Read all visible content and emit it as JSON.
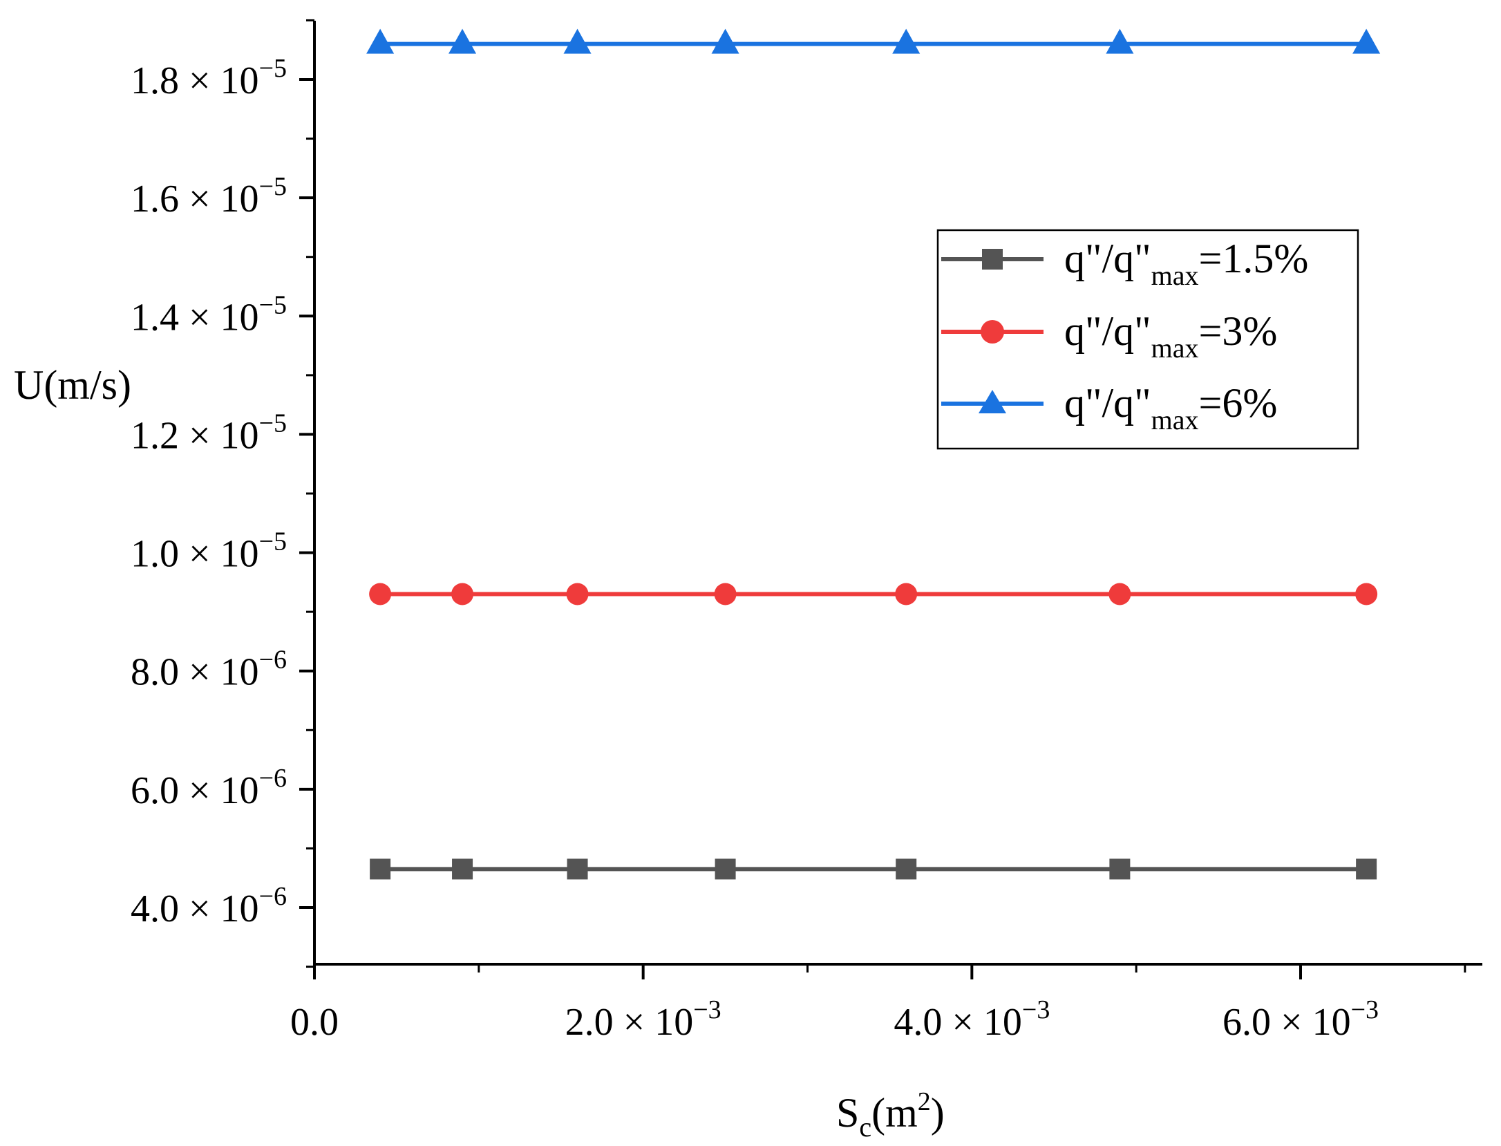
{
  "chart_data": {
    "type": "line",
    "xlabel": "S",
    "xlabel_sub": "c",
    "xlabel_unit_open": "(m",
    "xlabel_unit_sup": "2",
    "xlabel_unit_close": ")",
    "ylabel": "U(m/s)",
    "xlim": [
      0,
      0.007
    ],
    "ylim": [
      3e-06,
      1.9e-05
    ],
    "x_ticks": [
      {
        "value": 0,
        "mantissa": "0.0",
        "exponent": ""
      },
      {
        "value": 0.002,
        "mantissa": "2.0",
        "exponent": "−3"
      },
      {
        "value": 0.004,
        "mantissa": "4.0",
        "exponent": "−3"
      },
      {
        "value": 0.006,
        "mantissa": "6.0",
        "exponent": "−3"
      }
    ],
    "y_ticks": [
      {
        "value": 4e-06,
        "mantissa": "4.0",
        "exponent": "−6"
      },
      {
        "value": 6e-06,
        "mantissa": "6.0",
        "exponent": "−6"
      },
      {
        "value": 8e-06,
        "mantissa": "8.0",
        "exponent": "−6"
      },
      {
        "value": 1e-05,
        "mantissa": "1.0",
        "exponent": "−5"
      },
      {
        "value": 1.2e-05,
        "mantissa": "1.2",
        "exponent": "−5"
      },
      {
        "value": 1.4e-05,
        "mantissa": "1.4",
        "exponent": "−5"
      },
      {
        "value": 1.6e-05,
        "mantissa": "1.6",
        "exponent": "−5"
      },
      {
        "value": 1.8e-05,
        "mantissa": "1.8",
        "exponent": "−5"
      }
    ],
    "times_symbol": "×",
    "base": "10",
    "x": [
      0.0004,
      0.0009,
      0.0016,
      0.0025,
      0.0036,
      0.0049,
      0.0064
    ],
    "series": [
      {
        "key": "s15",
        "name_prefix": "q\"/q\"",
        "name_sub": "max",
        "name_suffix": "=1.5%",
        "color": "#545454",
        "marker": "square",
        "values": [
          4.65e-06,
          4.65e-06,
          4.65e-06,
          4.65e-06,
          4.65e-06,
          4.65e-06,
          4.65e-06
        ]
      },
      {
        "key": "s3",
        "name_prefix": "q\"/q\"",
        "name_sub": "max",
        "name_suffix": "=3%",
        "color": "#ef3b3b",
        "marker": "circle",
        "values": [
          9.3e-06,
          9.3e-06,
          9.3e-06,
          9.3e-06,
          9.3e-06,
          9.3e-06,
          9.3e-06
        ]
      },
      {
        "key": "s6",
        "name_prefix": "q\"/q\"",
        "name_sub": "max",
        "name_suffix": "=6%",
        "color": "#1a73e0",
        "marker": "triangle",
        "values": [
          1.86e-05,
          1.86e-05,
          1.86e-05,
          1.86e-05,
          1.86e-05,
          1.86e-05,
          1.86e-05
        ]
      }
    ],
    "legend_position": "right, upper-middle"
  }
}
